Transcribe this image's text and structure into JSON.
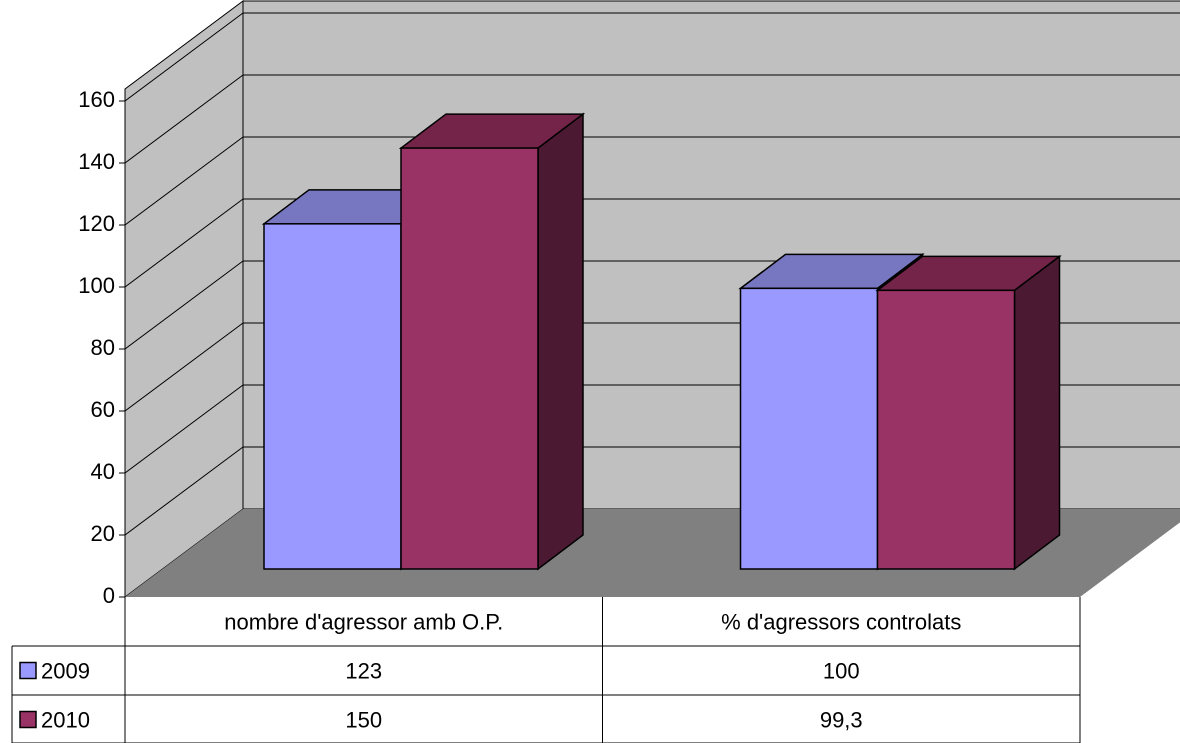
{
  "chart_data": {
    "type": "bar",
    "title": "",
    "xlabel": "",
    "ylabel": "",
    "categories": [
      "nombre d'agressor amb O.P.",
      "% d'agressors controlats"
    ],
    "series": [
      {
        "name": "2009",
        "values": [
          123,
          100
        ],
        "values_text": [
          "123",
          "100"
        ],
        "color": "#9999ff",
        "top_color": "#7676c1"
      },
      {
        "name": "2010",
        "values": [
          150,
          99.3
        ],
        "values_text": [
          "150",
          "99,3"
        ],
        "color": "#993366",
        "top_color": "#742449",
        "side_color": "#4b1a32"
      }
    ],
    "ylim": [
      0,
      160
    ],
    "yticks": [
      "0",
      "20",
      "40",
      "60",
      "80",
      "100",
      "120",
      "140",
      "160"
    ],
    "grid": true,
    "legend": "data-table-left",
    "data_table": true,
    "colors": {
      "wall": "#c0c0c0",
      "floor": "#808080",
      "grid": "#000000"
    }
  }
}
